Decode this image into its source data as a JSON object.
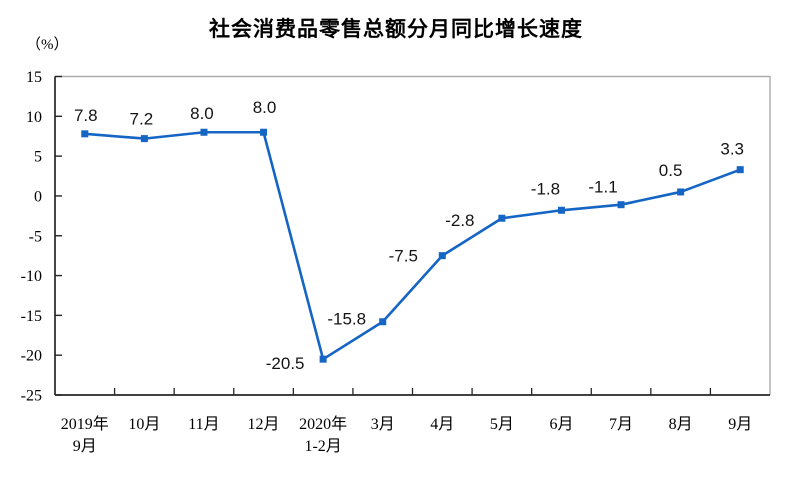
{
  "chart_data": {
    "type": "line",
    "title": "社会消费品零售总额分月同比增长速度",
    "unit_label": "（%）",
    "categories": [
      "2019年\n9月",
      "10月",
      "11月",
      "12月",
      "2020年\n1-2月",
      "3月",
      "4月",
      "5月",
      "6月",
      "7月",
      "8月",
      "9月"
    ],
    "values": [
      7.8,
      7.2,
      8.0,
      8.0,
      -20.5,
      -15.8,
      -7.5,
      -2.8,
      -1.8,
      -1.1,
      0.5,
      3.3
    ],
    "data_labels": [
      "7.8",
      "7.2",
      "8.0",
      "8.0",
      "-20.5",
      "-15.8",
      "-7.5",
      "-2.8",
      "-1.8",
      "-1.1",
      "0.5",
      "3.3"
    ],
    "y_ticks": [
      15,
      10,
      5,
      0,
      -5,
      -10,
      -15,
      -20,
      -25
    ],
    "ylim": [
      -25,
      15
    ],
    "xlabel": "",
    "ylabel": "（%）",
    "grid": "off",
    "legend": "none",
    "line_color": "#1565c4",
    "label_color": "#141414",
    "axis_color": "#262626",
    "border_color": "#ababab"
  }
}
